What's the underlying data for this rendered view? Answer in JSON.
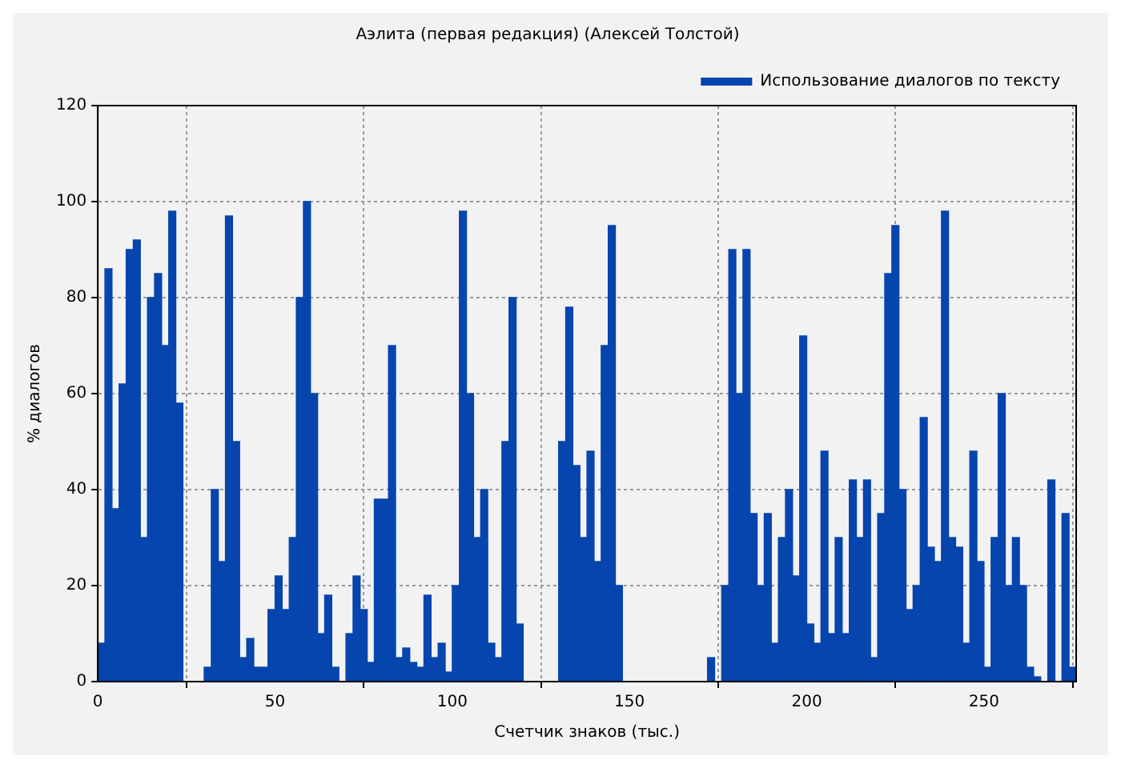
{
  "chart_data": {
    "type": "bar",
    "title": "Аэлита (первая редакция) (Алексей Толстой)",
    "xlabel": "Счетчик знаков (тыс.)",
    "ylabel": "% диалогов",
    "x": [
      1,
      3,
      5,
      7,
      9,
      11,
      13,
      15,
      17,
      19,
      21,
      23,
      25,
      27,
      29,
      31,
      33,
      35,
      37,
      39,
      41,
      43,
      45,
      47,
      49,
      51,
      53,
      55,
      57,
      59,
      61,
      63,
      65,
      67,
      69,
      71,
      73,
      75,
      77,
      79,
      81,
      83,
      85,
      87,
      89,
      91,
      93,
      95,
      97,
      99,
      101,
      103,
      105,
      107,
      109,
      111,
      113,
      115,
      117,
      119,
      121,
      123,
      125,
      127,
      129,
      131,
      133,
      135,
      137,
      139,
      141,
      143,
      145,
      147,
      149,
      151,
      153,
      155,
      157,
      159,
      161,
      163,
      165,
      167,
      169,
      171,
      173,
      175,
      177,
      179,
      181,
      183,
      185,
      187,
      189,
      191,
      193,
      195,
      197,
      199,
      201,
      203,
      205,
      207,
      209,
      211,
      213,
      215,
      217,
      219,
      221,
      223,
      225,
      227,
      229,
      231,
      233,
      235,
      237,
      239,
      241,
      243,
      245,
      247,
      249,
      251,
      253,
      255,
      257,
      259,
      261,
      263,
      265,
      267,
      269,
      271,
      273,
      275
    ],
    "series": [
      {
        "name": "Использование диалогов по тексту",
        "color": "#0645ad",
        "values": [
          8,
          86,
          36,
          62,
          90,
          92,
          30,
          80,
          85,
          70,
          98,
          58,
          null,
          null,
          null,
          3,
          40,
          25,
          97,
          50,
          5,
          9,
          3,
          3,
          15,
          22,
          15,
          30,
          80,
          100,
          60,
          10,
          18,
          3,
          null,
          10,
          22,
          15,
          4,
          38,
          38,
          70,
          5,
          7,
          4,
          3,
          18,
          5,
          8,
          2,
          20,
          98,
          60,
          30,
          40,
          8,
          5,
          50,
          80,
          12,
          null,
          null,
          null,
          null,
          null,
          50,
          78,
          45,
          30,
          48,
          25,
          70,
          95,
          20,
          null,
          null,
          null,
          null,
          null,
          null,
          null,
          null,
          null,
          null,
          null,
          null,
          5,
          null,
          20,
          90,
          60,
          90,
          35,
          20,
          35,
          8,
          30,
          40,
          22,
          72,
          12,
          8,
          48,
          10,
          30,
          10,
          42,
          30,
          42,
          5,
          35,
          85,
          95,
          40,
          15,
          20,
          55,
          28,
          25,
          98,
          30,
          28,
          8,
          48,
          25,
          3,
          30,
          60,
          20,
          30,
          20,
          3,
          1,
          null,
          42,
          null,
          35,
          3
        ]
      }
    ],
    "xlim": [
      0,
      276
    ],
    "xticks": [
      0,
      50,
      100,
      150,
      200,
      250
    ],
    "ylim": [
      0,
      120
    ],
    "yticks": [
      0,
      20,
      40,
      60,
      80,
      100,
      120
    ],
    "grid": true,
    "legend": "top right"
  }
}
